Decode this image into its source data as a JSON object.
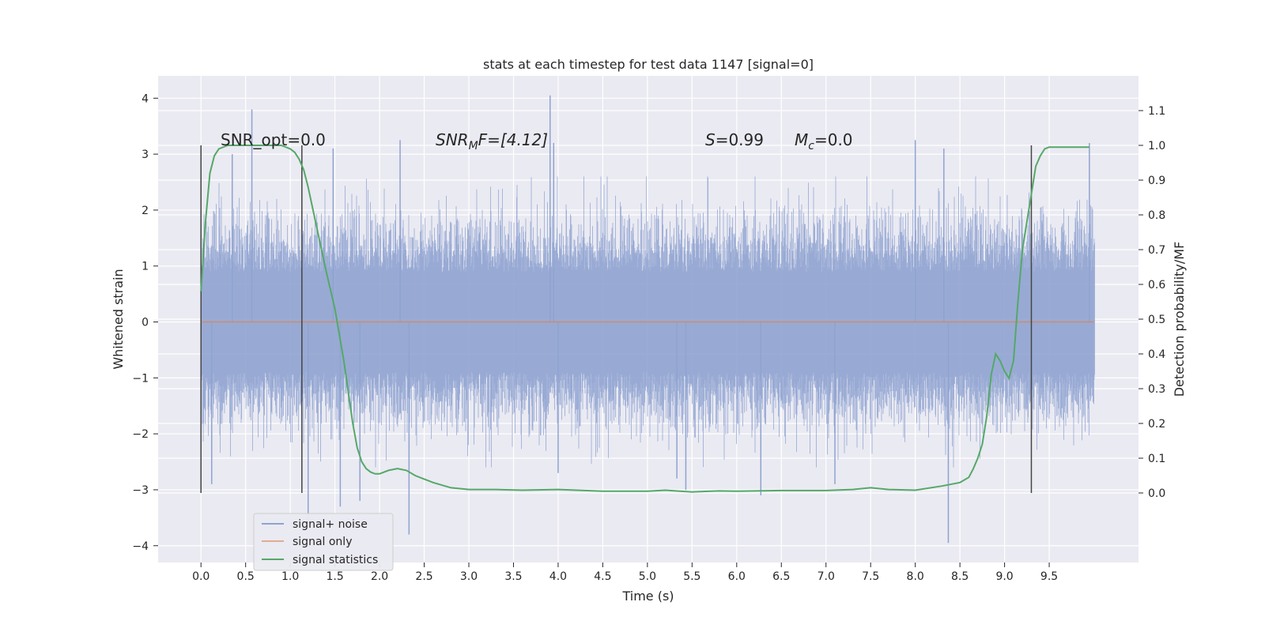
{
  "chart_data": {
    "type": "line",
    "title": "stats at each timestep for test data 1147 [signal=0]",
    "xlabel": "Time (s)",
    "ylabel_left": "Whitened strain",
    "ylabel_right": "Detection probability/MF",
    "xlim": [
      -0.48,
      10.5
    ],
    "ylim_left": [
      -4.3,
      4.4
    ],
    "ylim_right": [
      -0.2,
      1.2
    ],
    "x_ticks": [
      "0.0",
      "0.5",
      "1.0",
      "1.5",
      "2.0",
      "2.5",
      "3.0",
      "3.5",
      "4.0",
      "4.5",
      "5.0",
      "5.5",
      "6.0",
      "6.5",
      "7.0",
      "7.5",
      "8.0",
      "8.5",
      "9.0",
      "9.5"
    ],
    "y_ticks_left": [
      "4",
      "3",
      "2",
      "1",
      "0",
      "−1",
      "−2",
      "−3",
      "−4"
    ],
    "y_ticks_right": [
      "1.1",
      "1.0",
      "0.9",
      "0.8",
      "0.7",
      "0.6",
      "0.5",
      "0.4",
      "0.3",
      "0.2",
      "0.1",
      "0.0"
    ],
    "grid": true,
    "annotations": {
      "snr_opt": "SNR_opt=0.0",
      "snr_mf_prefix": "SNR",
      "snr_mf_sub": "M",
      "snr_mf_suffix": "F=[4.12]",
      "s_var": "S",
      "s_value": "=0.99",
      "mc_var": "M",
      "mc_sub": "c",
      "mc_value": "=0.0"
    },
    "vlines": [
      0.0,
      1.13,
      9.3
    ],
    "noise": {
      "x_range": [
        0.0,
        10.0
      ],
      "spikes": [
        {
          "x": 0.57,
          "y": 3.8
        },
        {
          "x": 1.2,
          "y": -3.6
        },
        {
          "x": 1.48,
          "y": 3.1
        },
        {
          "x": 1.56,
          "y": -3.3
        },
        {
          "x": 1.78,
          "y": -3.2
        },
        {
          "x": 2.23,
          "y": 3.25
        },
        {
          "x": 2.33,
          "y": -3.8
        },
        {
          "x": 3.91,
          "y": 4.05
        },
        {
          "x": 3.95,
          "y": 3.2
        },
        {
          "x": 5.33,
          "y": -2.8
        },
        {
          "x": 5.43,
          "y": -3.0
        },
        {
          "x": 6.27,
          "y": -3.1
        },
        {
          "x": 8.0,
          "y": 3.25
        },
        {
          "x": 8.37,
          "y": -3.95
        },
        {
          "x": 8.32,
          "y": 3.1
        },
        {
          "x": 9.95,
          "y": 3.2
        },
        {
          "x": 0.35,
          "y": 3.0
        },
        {
          "x": 0.12,
          "y": -2.9
        },
        {
          "x": 7.1,
          "y": -2.9
        },
        {
          "x": 4.0,
          "y": -2.7
        }
      ]
    },
    "series": [
      {
        "name": "signal+ noise",
        "color": "#8fa3d0"
      },
      {
        "name": "signal only",
        "color": "#dd8452"
      },
      {
        "name": "signal statistics",
        "color": "#55a868",
        "x": [
          0.0,
          0.05,
          0.1,
          0.15,
          0.2,
          0.3,
          0.5,
          0.7,
          0.9,
          1.0,
          1.05,
          1.1,
          1.15,
          1.2,
          1.3,
          1.4,
          1.5,
          1.6,
          1.7,
          1.75,
          1.8,
          1.85,
          1.9,
          1.95,
          2.0,
          2.1,
          2.2,
          2.3,
          2.4,
          2.5,
          2.6,
          2.8,
          3.0,
          3.3,
          3.6,
          4.0,
          4.5,
          5.0,
          5.2,
          5.5,
          5.8,
          6.0,
          6.5,
          7.0,
          7.3,
          7.5,
          7.7,
          8.0,
          8.3,
          8.5,
          8.6,
          8.65,
          8.7,
          8.75,
          8.8,
          8.85,
          8.9,
          8.95,
          9.0,
          9.05,
          9.1,
          9.15,
          9.2,
          9.25,
          9.3,
          9.35,
          9.4,
          9.45,
          9.5,
          9.6,
          9.8,
          9.95
        ],
        "y": [
          0.58,
          0.78,
          0.92,
          0.97,
          0.99,
          1.0,
          1.0,
          1.0,
          1.0,
          0.99,
          0.98,
          0.96,
          0.93,
          0.88,
          0.76,
          0.64,
          0.53,
          0.38,
          0.2,
          0.13,
          0.09,
          0.07,
          0.06,
          0.055,
          0.055,
          0.065,
          0.07,
          0.065,
          0.05,
          0.04,
          0.03,
          0.015,
          0.01,
          0.01,
          0.008,
          0.01,
          0.005,
          0.005,
          0.008,
          0.003,
          0.006,
          0.005,
          0.007,
          0.007,
          0.01,
          0.015,
          0.01,
          0.008,
          0.02,
          0.03,
          0.045,
          0.07,
          0.1,
          0.14,
          0.22,
          0.34,
          0.4,
          0.38,
          0.35,
          0.33,
          0.38,
          0.55,
          0.7,
          0.78,
          0.86,
          0.94,
          0.97,
          0.99,
          0.995,
          0.995,
          0.995,
          0.995
        ]
      }
    ],
    "legend_position": "lower-left"
  }
}
